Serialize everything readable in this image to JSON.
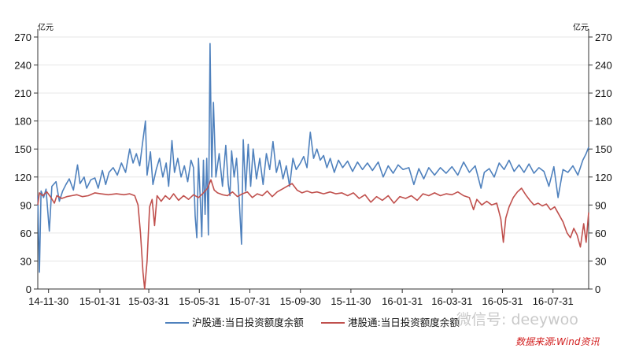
{
  "chart_data": {
    "type": "line",
    "y_unit_left": "亿元",
    "y_unit_right": "亿元",
    "ylim": [
      0,
      270
    ],
    "yticks": [
      0,
      30,
      60,
      90,
      120,
      150,
      180,
      210,
      240,
      270
    ],
    "xlim": [
      "2014-11-17",
      "2016-09-12"
    ],
    "xticks": [
      "14-11-30",
      "15-01-31",
      "15-03-31",
      "15-05-31",
      "15-07-31",
      "15-09-30",
      "15-11-30",
      "16-01-31",
      "16-03-31",
      "16-05-31",
      "16-07-31"
    ],
    "grid": true,
    "legend_position": "bottom",
    "watermark": "微信号: deeywoo",
    "source": "数据来源:Wind资讯",
    "series": [
      {
        "name": "沪股通:当日投资额度余额",
        "color": "#4f81bd",
        "points": [
          [
            "2014-11-17",
            100
          ],
          [
            "2014-11-19",
            18
          ],
          [
            "2014-11-21",
            105
          ],
          [
            "2014-11-24",
            98
          ],
          [
            "2014-11-27",
            107
          ],
          [
            "2014-12-01",
            62
          ],
          [
            "2014-12-04",
            110
          ],
          [
            "2014-12-09",
            115
          ],
          [
            "2014-12-13",
            94
          ],
          [
            "2014-12-17",
            105
          ],
          [
            "2014-12-21",
            112
          ],
          [
            "2014-12-25",
            118
          ],
          [
            "2014-12-30",
            106
          ],
          [
            "2015-01-04",
            133
          ],
          [
            "2015-01-07",
            113
          ],
          [
            "2015-01-12",
            120
          ],
          [
            "2015-01-15",
            108
          ],
          [
            "2015-01-20",
            117
          ],
          [
            "2015-01-25",
            119
          ],
          [
            "2015-01-29",
            108
          ],
          [
            "2015-02-03",
            127
          ],
          [
            "2015-02-07",
            112
          ],
          [
            "2015-02-11",
            125
          ],
          [
            "2015-02-16",
            130
          ],
          [
            "2015-02-21",
            122
          ],
          [
            "2015-02-26",
            135
          ],
          [
            "2015-03-03",
            125
          ],
          [
            "2015-03-08",
            150
          ],
          [
            "2015-03-12",
            135
          ],
          [
            "2015-03-16",
            145
          ],
          [
            "2015-03-20",
            132
          ],
          [
            "2015-03-24",
            160
          ],
          [
            "2015-03-27",
            180
          ],
          [
            "2015-03-29",
            122
          ],
          [
            "2015-04-02",
            147
          ],
          [
            "2015-04-05",
            112
          ],
          [
            "2015-04-09",
            128
          ],
          [
            "2015-04-13",
            140
          ],
          [
            "2015-04-17",
            120
          ],
          [
            "2015-04-21",
            135
          ],
          [
            "2015-04-24",
            110
          ],
          [
            "2015-04-28",
            159
          ],
          [
            "2015-05-01",
            125
          ],
          [
            "2015-05-05",
            140
          ],
          [
            "2015-05-09",
            120
          ],
          [
            "2015-05-13",
            132
          ],
          [
            "2015-05-17",
            115
          ],
          [
            "2015-05-21",
            138
          ],
          [
            "2015-05-24",
            130
          ],
          [
            "2015-05-26",
            78
          ],
          [
            "2015-05-28",
            55
          ],
          [
            "2015-05-30",
            140
          ],
          [
            "2015-06-01",
            100
          ],
          [
            "2015-06-03",
            56
          ],
          [
            "2015-06-05",
            138
          ],
          [
            "2015-06-07",
            80
          ],
          [
            "2015-06-09",
            140
          ],
          [
            "2015-06-11",
            58
          ],
          [
            "2015-06-13",
            263
          ],
          [
            "2015-06-15",
            120
          ],
          [
            "2015-06-17",
            200
          ],
          [
            "2015-06-20",
            120
          ],
          [
            "2015-06-24",
            145
          ],
          [
            "2015-06-28",
            110
          ],
          [
            "2015-07-02",
            154
          ],
          [
            "2015-07-05",
            112
          ],
          [
            "2015-07-07",
            100
          ],
          [
            "2015-07-09",
            148
          ],
          [
            "2015-07-12",
            120
          ],
          [
            "2015-07-15",
            140
          ],
          [
            "2015-07-18",
            98
          ],
          [
            "2015-07-21",
            48
          ],
          [
            "2015-07-23",
            160
          ],
          [
            "2015-07-26",
            105
          ],
          [
            "2015-07-29",
            155
          ],
          [
            "2015-08-01",
            110
          ],
          [
            "2015-08-04",
            150
          ],
          [
            "2015-08-08",
            118
          ],
          [
            "2015-08-12",
            140
          ],
          [
            "2015-08-16",
            112
          ],
          [
            "2015-08-20",
            145
          ],
          [
            "2015-08-24",
            128
          ],
          [
            "2015-08-28",
            158
          ],
          [
            "2015-09-01",
            125
          ],
          [
            "2015-09-05",
            138
          ],
          [
            "2015-09-09",
            118
          ],
          [
            "2015-09-13",
            132
          ],
          [
            "2015-09-17",
            110
          ],
          [
            "2015-09-21",
            140
          ],
          [
            "2015-09-25",
            128
          ],
          [
            "2015-09-30",
            135
          ],
          [
            "2015-10-04",
            142
          ],
          [
            "2015-10-08",
            130
          ],
          [
            "2015-10-12",
            168
          ],
          [
            "2015-10-16",
            140
          ],
          [
            "2015-10-20",
            150
          ],
          [
            "2015-10-24",
            138
          ],
          [
            "2015-10-28",
            143
          ],
          [
            "2015-11-01",
            130
          ],
          [
            "2015-11-05",
            140
          ],
          [
            "2015-11-10",
            125
          ],
          [
            "2015-11-15",
            138
          ],
          [
            "2015-11-20",
            130
          ],
          [
            "2015-11-26",
            137
          ],
          [
            "2015-12-02",
            126
          ],
          [
            "2015-12-08",
            136
          ],
          [
            "2015-12-14",
            128
          ],
          [
            "2015-12-20",
            135
          ],
          [
            "2015-12-26",
            127
          ],
          [
            "2016-01-02",
            136
          ],
          [
            "2016-01-08",
            120
          ],
          [
            "2016-01-14",
            132
          ],
          [
            "2016-01-20",
            124
          ],
          [
            "2016-01-26",
            133
          ],
          [
            "2016-02-01",
            128
          ],
          [
            "2016-02-08",
            130
          ],
          [
            "2016-02-14",
            112
          ],
          [
            "2016-02-20",
            129
          ],
          [
            "2016-02-26",
            118
          ],
          [
            "2016-03-03",
            130
          ],
          [
            "2016-03-10",
            122
          ],
          [
            "2016-03-17",
            130
          ],
          [
            "2016-03-24",
            124
          ],
          [
            "2016-03-31",
            131
          ],
          [
            "2016-04-07",
            122
          ],
          [
            "2016-04-14",
            136
          ],
          [
            "2016-04-21",
            125
          ],
          [
            "2016-04-28",
            132
          ],
          [
            "2016-05-05",
            108
          ],
          [
            "2016-05-09",
            125
          ],
          [
            "2016-05-15",
            129
          ],
          [
            "2016-05-21",
            120
          ],
          [
            "2016-05-27",
            135
          ],
          [
            "2016-06-02",
            128
          ],
          [
            "2016-06-08",
            138
          ],
          [
            "2016-06-14",
            126
          ],
          [
            "2016-06-20",
            133
          ],
          [
            "2016-06-26",
            125
          ],
          [
            "2016-07-02",
            134
          ],
          [
            "2016-07-08",
            124
          ],
          [
            "2016-07-14",
            130
          ],
          [
            "2016-07-20",
            126
          ],
          [
            "2016-07-26",
            110
          ],
          [
            "2016-08-01",
            131
          ],
          [
            "2016-08-06",
            98
          ],
          [
            "2016-08-12",
            128
          ],
          [
            "2016-08-18",
            125
          ],
          [
            "2016-08-24",
            132
          ],
          [
            "2016-08-30",
            122
          ],
          [
            "2016-09-05",
            138
          ],
          [
            "2016-09-09",
            145
          ],
          [
            "2016-09-12",
            152
          ]
        ]
      },
      {
        "name": "港股通:当日投资额度余额",
        "color": "#c0504d",
        "points": [
          [
            "2014-11-17",
            90
          ],
          [
            "2014-11-19",
            103
          ],
          [
            "2014-11-23",
            100
          ],
          [
            "2014-11-28",
            104
          ],
          [
            "2014-12-03",
            98
          ],
          [
            "2014-12-07",
            92
          ],
          [
            "2014-12-10",
            100
          ],
          [
            "2014-12-16",
            97
          ],
          [
            "2014-12-22",
            99
          ],
          [
            "2014-12-28",
            100
          ],
          [
            "2015-01-03",
            101
          ],
          [
            "2015-01-10",
            99
          ],
          [
            "2015-01-17",
            100
          ],
          [
            "2015-01-25",
            103
          ],
          [
            "2015-02-01",
            102
          ],
          [
            "2015-02-10",
            101
          ],
          [
            "2015-02-20",
            102
          ],
          [
            "2015-03-01",
            101
          ],
          [
            "2015-03-08",
            102
          ],
          [
            "2015-03-14",
            100
          ],
          [
            "2015-03-18",
            90
          ],
          [
            "2015-03-21",
            60
          ],
          [
            "2015-03-24",
            18
          ],
          [
            "2015-03-26",
            0
          ],
          [
            "2015-03-29",
            30
          ],
          [
            "2015-04-01",
            88
          ],
          [
            "2015-04-04",
            96
          ],
          [
            "2015-04-07",
            68
          ],
          [
            "2015-04-10",
            100
          ],
          [
            "2015-04-15",
            94
          ],
          [
            "2015-04-20",
            100
          ],
          [
            "2015-04-25",
            96
          ],
          [
            "2015-04-30",
            102
          ],
          [
            "2015-05-06",
            95
          ],
          [
            "2015-05-12",
            100
          ],
          [
            "2015-05-18",
            96
          ],
          [
            "2015-05-24",
            101
          ],
          [
            "2015-05-30",
            98
          ],
          [
            "2015-06-05",
            103
          ],
          [
            "2015-06-10",
            108
          ],
          [
            "2015-06-14",
            117
          ],
          [
            "2015-06-18",
            106
          ],
          [
            "2015-06-22",
            103
          ],
          [
            "2015-06-28",
            101
          ],
          [
            "2015-07-04",
            100
          ],
          [
            "2015-07-10",
            104
          ],
          [
            "2015-07-16",
            99
          ],
          [
            "2015-07-22",
            102
          ],
          [
            "2015-07-28",
            104
          ],
          [
            "2015-08-03",
            98
          ],
          [
            "2015-08-09",
            102
          ],
          [
            "2015-08-15",
            100
          ],
          [
            "2015-08-21",
            105
          ],
          [
            "2015-08-27",
            99
          ],
          [
            "2015-09-02",
            104
          ],
          [
            "2015-09-08",
            107
          ],
          [
            "2015-09-14",
            110
          ],
          [
            "2015-09-20",
            113
          ],
          [
            "2015-09-26",
            106
          ],
          [
            "2015-10-02",
            103
          ],
          [
            "2015-10-08",
            105
          ],
          [
            "2015-10-14",
            103
          ],
          [
            "2015-10-20",
            104
          ],
          [
            "2015-10-28",
            102
          ],
          [
            "2015-11-05",
            104
          ],
          [
            "2015-11-12",
            102
          ],
          [
            "2015-11-19",
            103
          ],
          [
            "2015-11-26",
            100
          ],
          [
            "2015-12-03",
            103
          ],
          [
            "2015-12-10",
            97
          ],
          [
            "2015-12-17",
            101
          ],
          [
            "2015-12-24",
            93
          ],
          [
            "2015-12-31",
            99
          ],
          [
            "2016-01-07",
            95
          ],
          [
            "2016-01-14",
            100
          ],
          [
            "2016-01-21",
            92
          ],
          [
            "2016-01-28",
            99
          ],
          [
            "2016-02-04",
            97
          ],
          [
            "2016-02-11",
            100
          ],
          [
            "2016-02-18",
            95
          ],
          [
            "2016-02-25",
            102
          ],
          [
            "2016-03-03",
            100
          ],
          [
            "2016-03-10",
            103
          ],
          [
            "2016-03-17",
            100
          ],
          [
            "2016-03-24",
            102
          ],
          [
            "2016-03-31",
            101
          ],
          [
            "2016-04-07",
            104
          ],
          [
            "2016-04-14",
            100
          ],
          [
            "2016-04-21",
            98
          ],
          [
            "2016-04-26",
            85
          ],
          [
            "2016-04-30",
            96
          ],
          [
            "2016-05-06",
            90
          ],
          [
            "2016-05-12",
            94
          ],
          [
            "2016-05-18",
            90
          ],
          [
            "2016-05-24",
            92
          ],
          [
            "2016-05-29",
            75
          ],
          [
            "2016-06-01",
            50
          ],
          [
            "2016-06-04",
            76
          ],
          [
            "2016-06-08",
            88
          ],
          [
            "2016-06-13",
            98
          ],
          [
            "2016-06-18",
            104
          ],
          [
            "2016-06-23",
            108
          ],
          [
            "2016-06-28",
            101
          ],
          [
            "2016-07-03",
            95
          ],
          [
            "2016-07-08",
            90
          ],
          [
            "2016-07-13",
            92
          ],
          [
            "2016-07-18",
            89
          ],
          [
            "2016-07-23",
            91
          ],
          [
            "2016-07-28",
            85
          ],
          [
            "2016-08-02",
            88
          ],
          [
            "2016-08-07",
            80
          ],
          [
            "2016-08-12",
            72
          ],
          [
            "2016-08-17",
            60
          ],
          [
            "2016-08-21",
            55
          ],
          [
            "2016-08-25",
            65
          ],
          [
            "2016-08-29",
            58
          ],
          [
            "2016-09-02",
            45
          ],
          [
            "2016-09-06",
            70
          ],
          [
            "2016-09-09",
            50
          ],
          [
            "2016-09-12",
            82
          ]
        ]
      }
    ]
  }
}
